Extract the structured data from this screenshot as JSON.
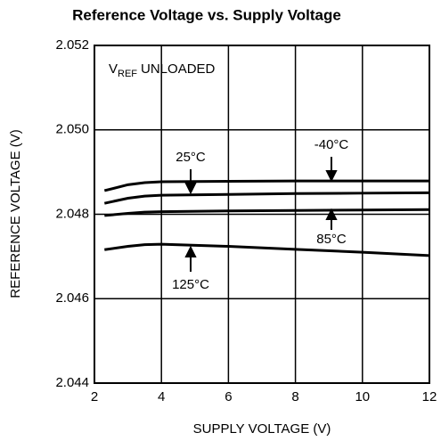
{
  "chart_data": {
    "type": "line",
    "title": "Reference Voltage vs. Supply Voltage",
    "xlabel": "SUPPLY VOLTAGE (V)",
    "ylabel": "REFERENCE VOLTAGE (V)",
    "annotation": {
      "symbol": "V",
      "subscript": "REF",
      "text": "UNLOADED"
    },
    "x": [
      2.3,
      3,
      3.5,
      4,
      6,
      8,
      10,
      12
    ],
    "series": [
      {
        "name": "-40°C",
        "color": "#000000",
        "values": [
          2.04856,
          2.0487,
          2.04875,
          2.04877,
          2.04878,
          2.04879,
          2.04879,
          2.04879
        ]
      },
      {
        "name": "25°C",
        "color": "#000000",
        "values": [
          2.04826,
          2.04838,
          2.04843,
          2.04845,
          2.04847,
          2.04849,
          2.0485,
          2.04851
        ]
      },
      {
        "name": "85°C",
        "color": "#000000",
        "values": [
          2.04797,
          2.04802,
          2.04805,
          2.04806,
          2.04808,
          2.04809,
          2.0481,
          2.04811
        ]
      },
      {
        "name": "125°C",
        "color": "#000000",
        "values": [
          2.04716,
          2.04724,
          2.04728,
          2.04729,
          2.04724,
          2.04717,
          2.0471,
          2.04702
        ]
      }
    ],
    "xlim": [
      2,
      12
    ],
    "xticks": [
      2,
      4,
      6,
      8,
      10,
      12
    ],
    "ylim": [
      2.044,
      2.052
    ],
    "yticks": [
      2.044,
      2.046,
      2.048,
      {
        "value": 2.05,
        "label": "2.050"
      },
      2.052
    ],
    "grid": true
  }
}
